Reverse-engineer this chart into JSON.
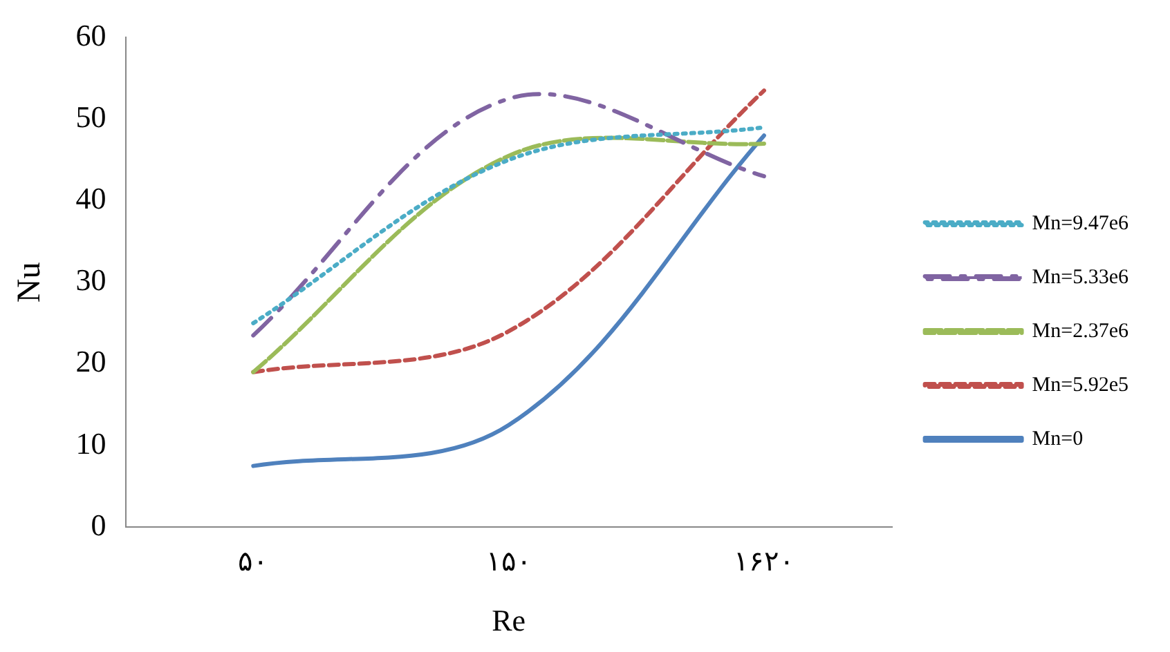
{
  "chart_data": {
    "type": "line",
    "xlabel": "Re",
    "ylabel": "Nu",
    "categories": [
      "۵۰",
      "۱۵۰",
      "۱۶۲۰"
    ],
    "series": [
      {
        "name": "Mn=9.47e6",
        "color": "#4bacc6",
        "line_style": "dotted",
        "values": [
          25,
          45,
          49
        ]
      },
      {
        "name": "Mn=5.33e6",
        "color": "#8064a2",
        "line_style": "dashdot",
        "values": [
          23.5,
          52.5,
          43
        ]
      },
      {
        "name": "Mn=2.37e6",
        "color": "#9bbb59",
        "line_style": "longdash",
        "values": [
          19,
          45.5,
          47
        ]
      },
      {
        "name": "Mn=5.92e5",
        "color": "#c0504d",
        "line_style": "dashed",
        "values": [
          19,
          24,
          53.5
        ]
      },
      {
        "name": "Mn=0",
        "color": "#4f81bd",
        "line_style": "solid",
        "values": [
          7.5,
          12.5,
          48
        ]
      }
    ],
    "ylim": [
      0,
      60
    ],
    "yticks": [
      0,
      10,
      20,
      30,
      40,
      50,
      60
    ],
    "grid": false,
    "legend": "right",
    "marker": "none"
  }
}
